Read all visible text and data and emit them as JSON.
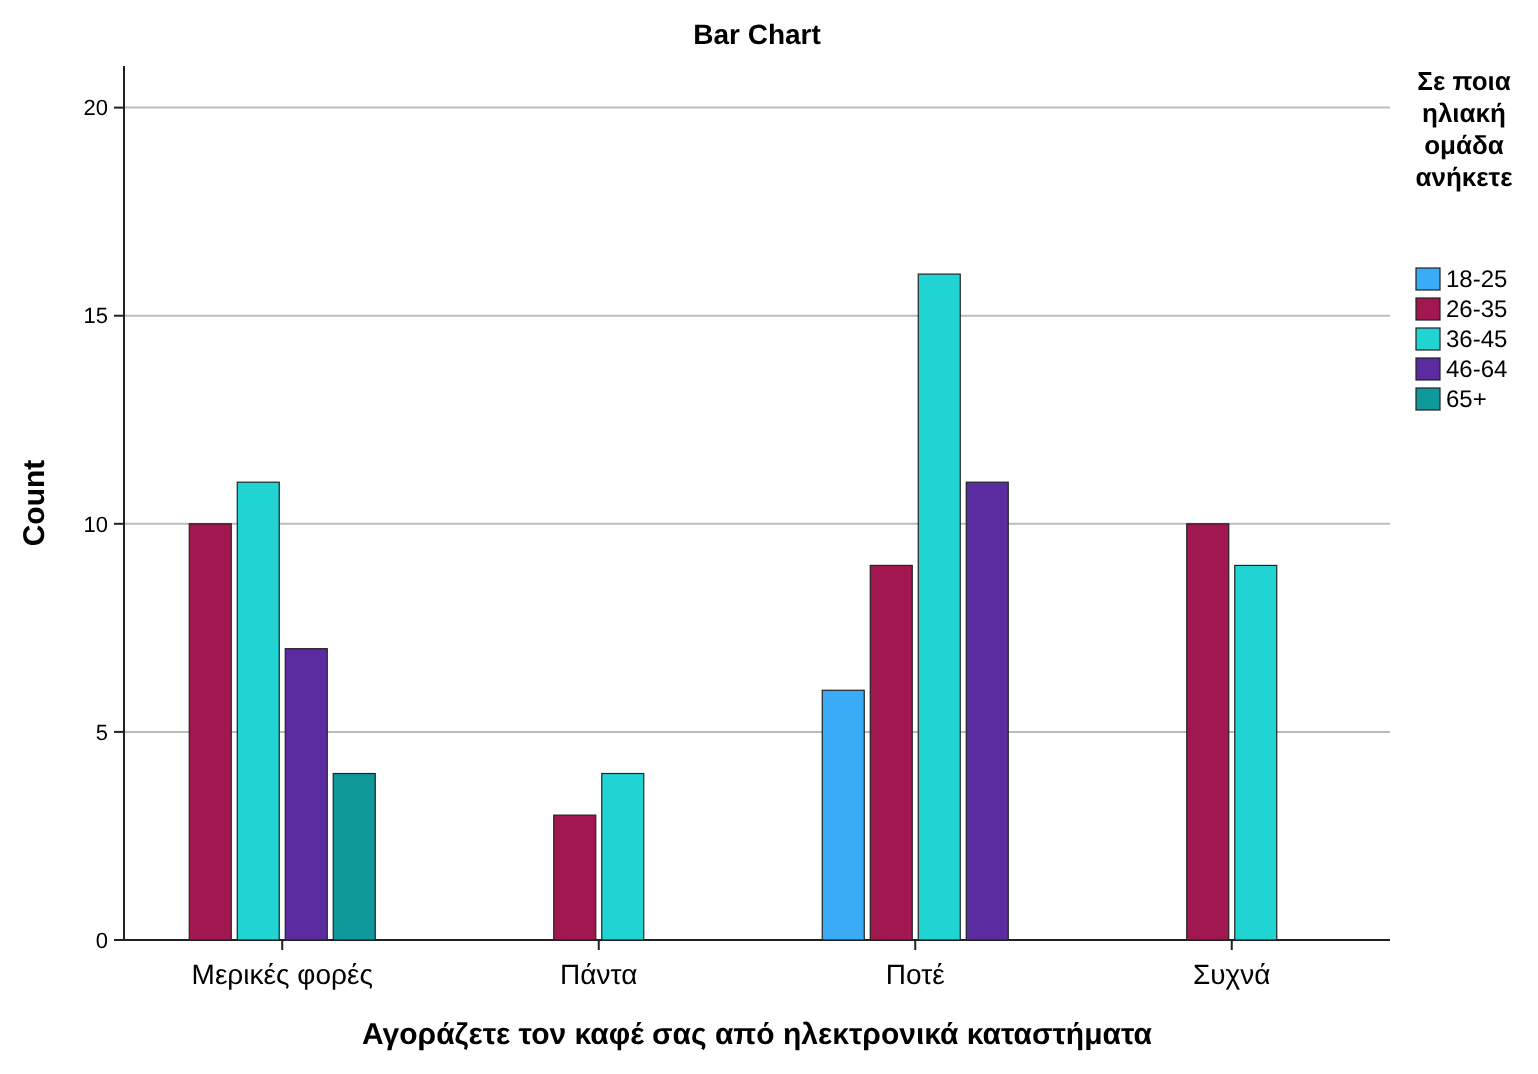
{
  "chart_data": {
    "type": "bar",
    "title": "Bar Chart",
    "xlabel": "Αγοράζετε τον καφέ σας από ηλεκτρονικά καταστήματα",
    "ylabel": "Count",
    "legend_title": "Σε ποια ηλιακή ομάδα ανήκετε",
    "categories": [
      "Μερικές φορές",
      "Πάντα",
      "Ποτέ",
      "Συχνά"
    ],
    "series": [
      {
        "name": "18-25",
        "color": "#3aabf6",
        "values": [
          null,
          null,
          6,
          null
        ]
      },
      {
        "name": "26-35",
        "color": "#a1174f",
        "values": [
          10,
          3,
          9,
          10
        ]
      },
      {
        "name": "36-45",
        "color": "#21d4d4",
        "values": [
          11,
          4,
          16,
          9
        ]
      },
      {
        "name": "46-64",
        "color": "#5a2c9f",
        "values": [
          7,
          null,
          11,
          null
        ]
      },
      {
        "name": "65+",
        "color": "#10999a",
        "values": [
          4,
          null,
          null,
          null
        ]
      }
    ],
    "ylim": [
      0,
      21
    ],
    "yticks": [
      0,
      5,
      10,
      15,
      20
    ],
    "grid": "y",
    "legend": "right"
  }
}
